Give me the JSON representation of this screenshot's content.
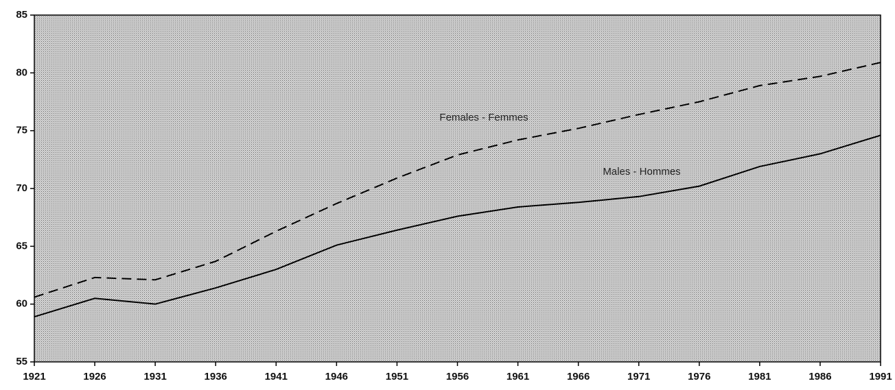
{
  "chart_data": {
    "type": "line",
    "x": [
      1921,
      1926,
      1931,
      1936,
      1941,
      1946,
      1951,
      1956,
      1961,
      1966,
      1971,
      1976,
      1981,
      1986,
      1991
    ],
    "series": [
      {
        "name": "Females - Femmes",
        "color": "#000000",
        "dash": "dashed",
        "values": [
          60.6,
          62.3,
          62.1,
          63.7,
          66.3,
          68.7,
          70.9,
          72.9,
          74.2,
          75.2,
          76.4,
          77.5,
          78.9,
          79.7,
          80.9
        ]
      },
      {
        "name": "Males - Hommes",
        "color": "#000000",
        "dash": "solid",
        "values": [
          58.9,
          60.5,
          60.0,
          61.4,
          63.0,
          65.1,
          66.4,
          67.6,
          68.4,
          68.8,
          69.3,
          70.2,
          71.9,
          73.0,
          74.6
        ]
      }
    ],
    "xlim": [
      1921,
      1991
    ],
    "xticks": [
      1921,
      1926,
      1931,
      1936,
      1941,
      1946,
      1951,
      1956,
      1961,
      1966,
      1971,
      1976,
      1981,
      1986,
      1991
    ],
    "ylim": [
      55,
      85
    ],
    "yticks": [
      55,
      60,
      65,
      70,
      75,
      80,
      85
    ]
  }
}
